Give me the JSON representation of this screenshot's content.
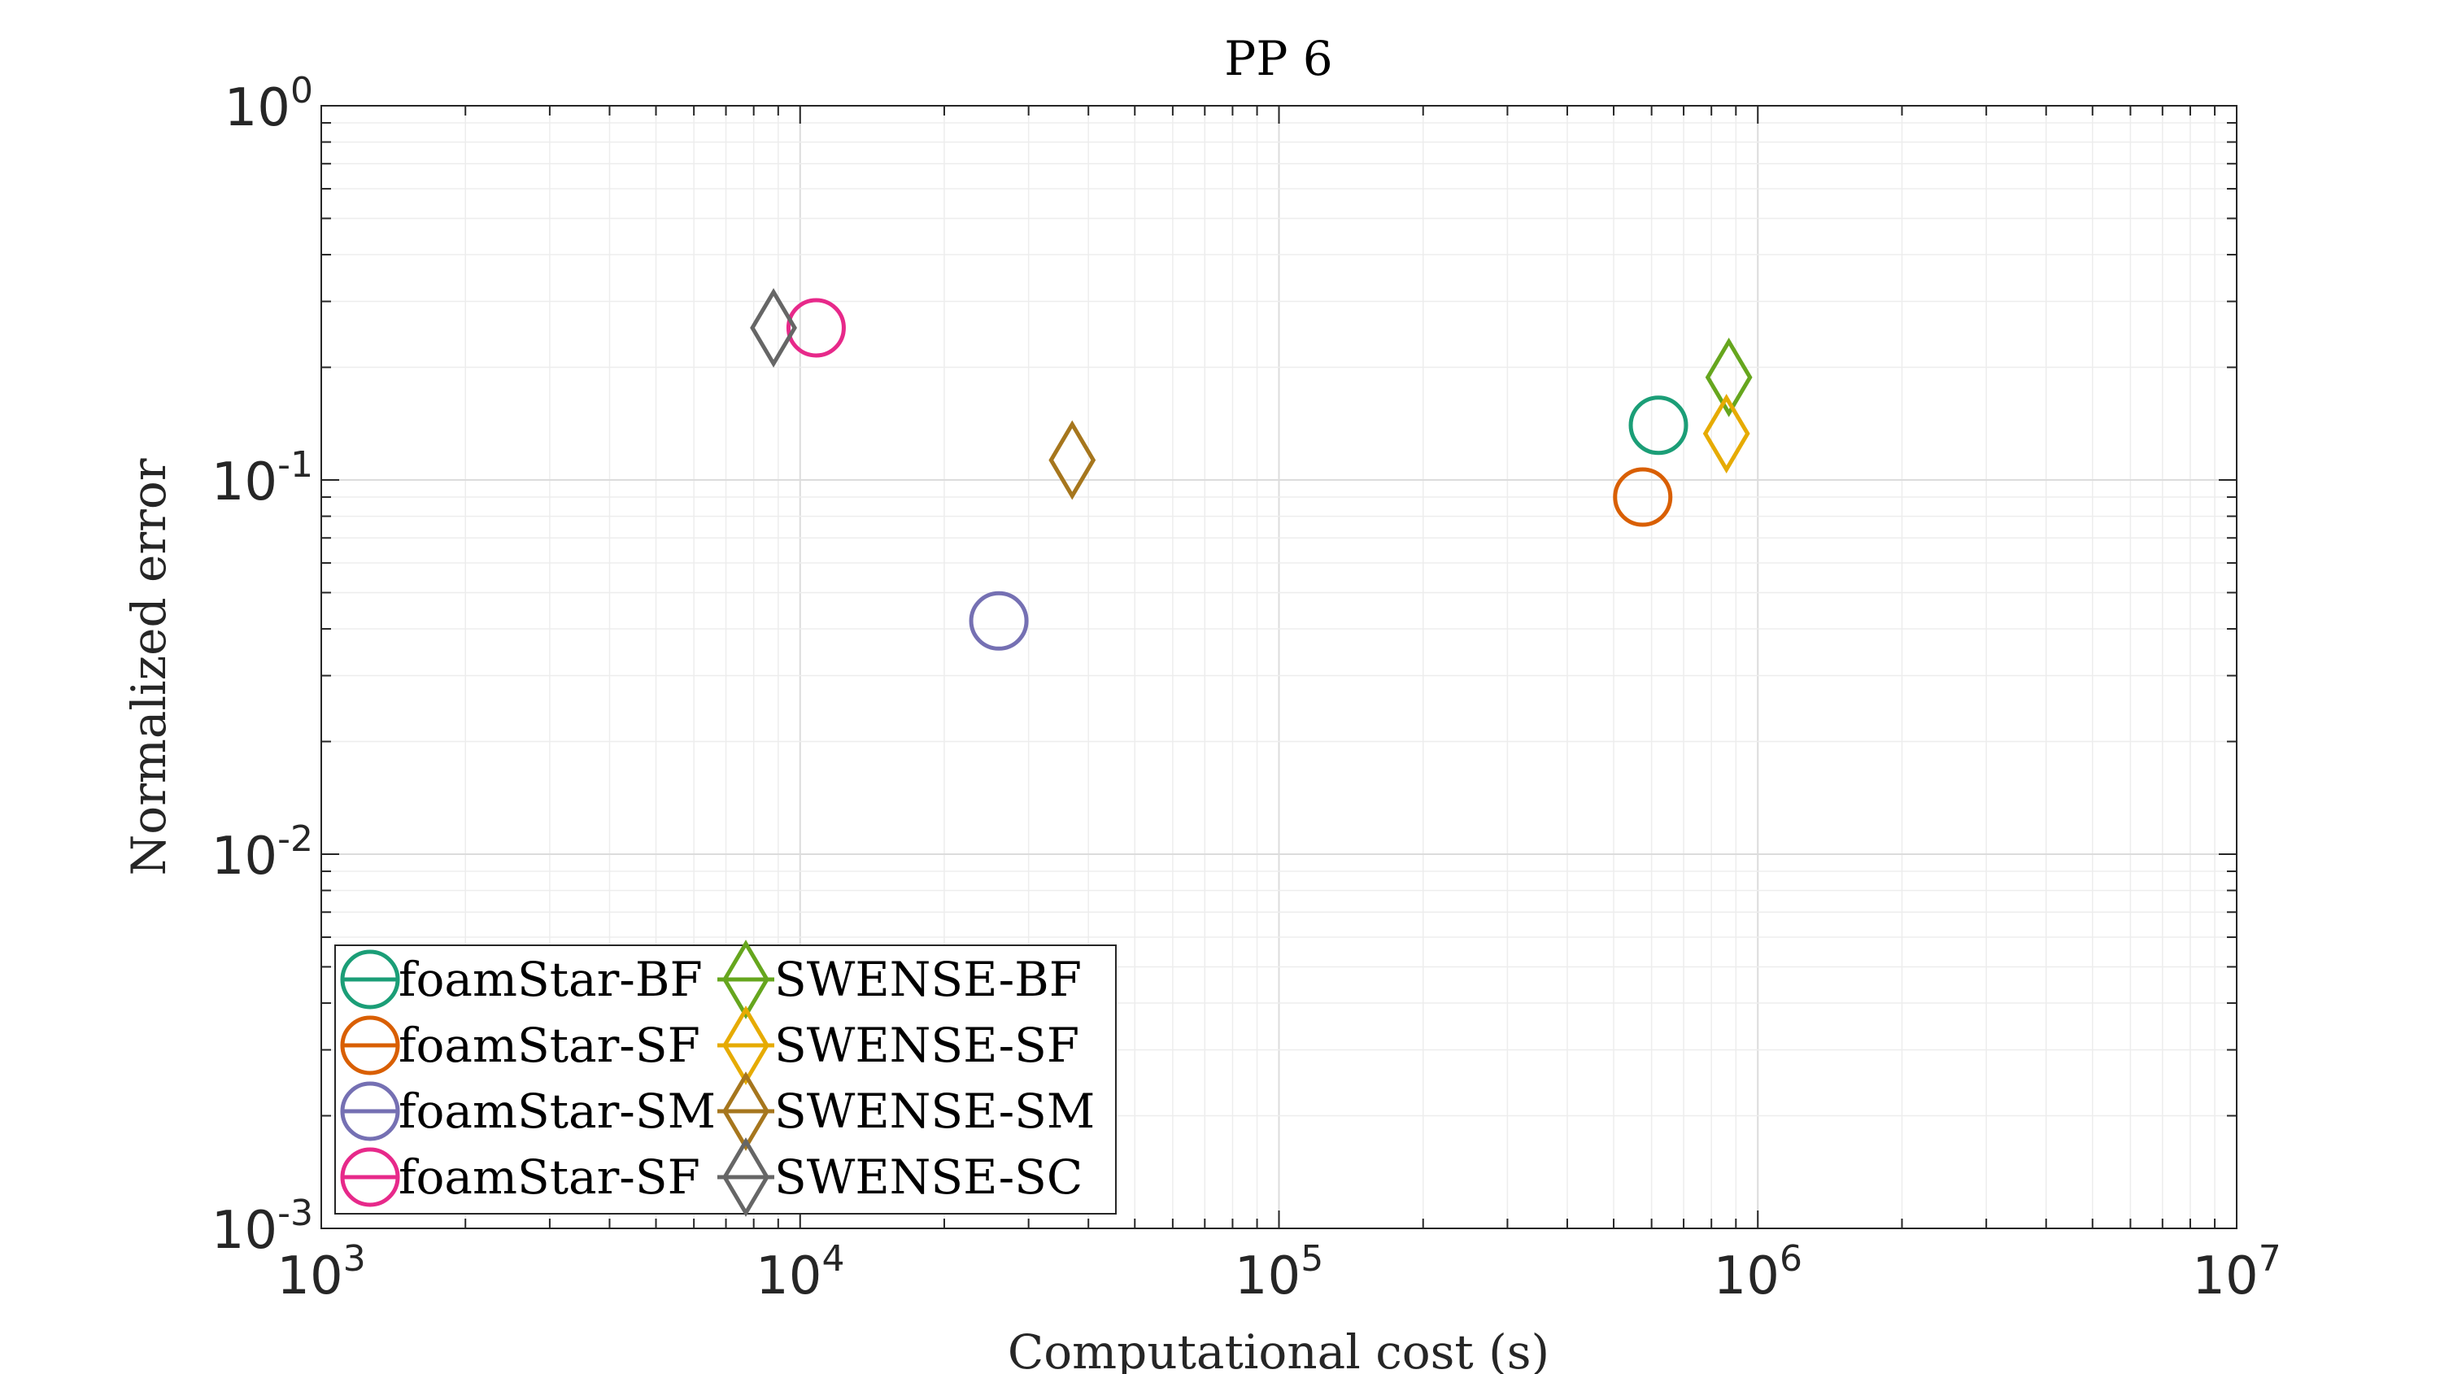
{
  "chart_data": {
    "type": "scatter",
    "title": "PP 6",
    "xlabel": "Computational cost (s)",
    "ylabel": "Normalized error",
    "xscale": "log",
    "yscale": "log",
    "xlim": [
      1000,
      10000000
    ],
    "ylim": [
      0.001,
      1
    ],
    "grid": true,
    "minor_grid": true,
    "x_ticks": [
      {
        "value": 1000,
        "base": "10",
        "exp": "3"
      },
      {
        "value": 10000,
        "base": "10",
        "exp": "4"
      },
      {
        "value": 100000,
        "base": "10",
        "exp": "5"
      },
      {
        "value": 1000000,
        "base": "10",
        "exp": "6"
      },
      {
        "value": 10000000,
        "base": "10",
        "exp": "7"
      }
    ],
    "y_ticks": [
      {
        "value": 0.001,
        "base": "10",
        "exp": "-3"
      },
      {
        "value": 0.01,
        "base": "10",
        "exp": "-2"
      },
      {
        "value": 0.1,
        "base": "10",
        "exp": "-1"
      },
      {
        "value": 1,
        "base": "10",
        "exp": "0"
      }
    ],
    "legend_position": "bottom-left",
    "legend_columns": 2,
    "series": [
      {
        "name": "foamStar-BF",
        "marker": "circle",
        "color": "#1b9e77",
        "x": 620000,
        "y": 0.14
      },
      {
        "name": "foamStar-SF",
        "marker": "circle",
        "color": "#d95f02",
        "x": 575000,
        "y": 0.09
      },
      {
        "name": "foamStar-SM",
        "marker": "circle",
        "color": "#7570b3",
        "x": 26000,
        "y": 0.042
      },
      {
        "name": "foamStar-SF",
        "marker": "circle",
        "color": "#e7298a",
        "x": 10800,
        "y": 0.255
      },
      {
        "name": "SWENSE-BF",
        "marker": "diamond",
        "color": "#66a61e",
        "x": 870000,
        "y": 0.188
      },
      {
        "name": "SWENSE-SF",
        "marker": "diamond",
        "color": "#e6ab02",
        "x": 860000,
        "y": 0.133
      },
      {
        "name": "SWENSE-SM",
        "marker": "diamond",
        "color": "#a6761d",
        "x": 37000,
        "y": 0.113
      },
      {
        "name": "SWENSE-SC",
        "marker": "diamond",
        "color": "#666666",
        "x": 8800,
        "y": 0.255
      }
    ]
  }
}
